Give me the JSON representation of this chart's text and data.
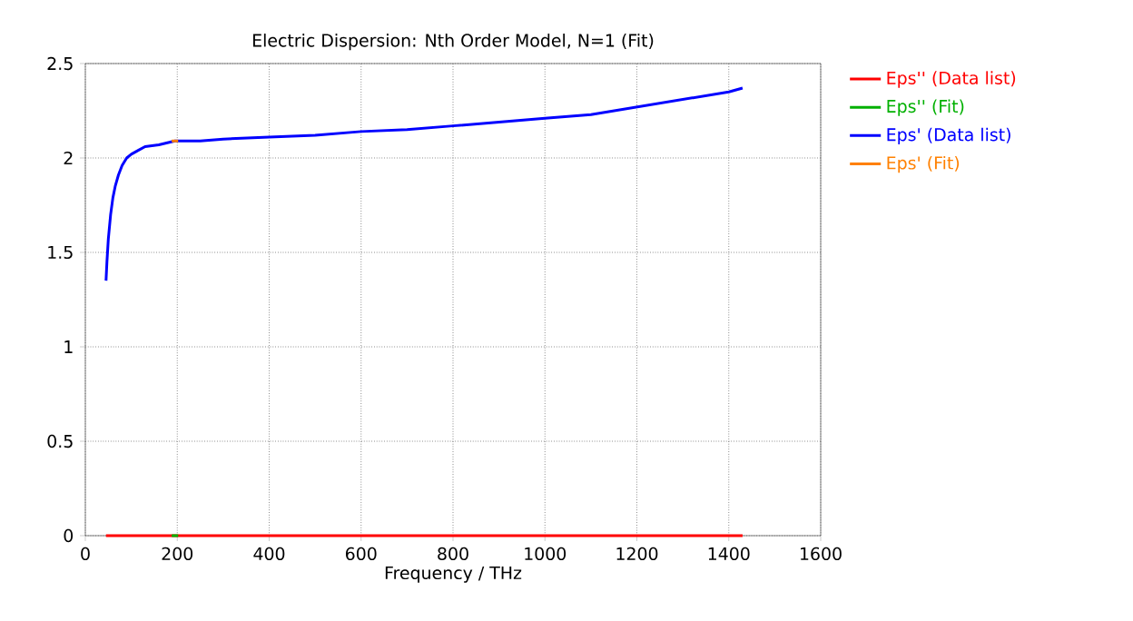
{
  "chart_data": {
    "type": "line",
    "title": "Electric Dispersion: Nth Order Model, N=1 (Fit)",
    "xlabel": "Frequency / THz",
    "series": [
      {
        "name": "Eps'' (Data list)",
        "color": "#ff0000",
        "x": [
          45,
          200,
          400,
          600,
          800,
          1000,
          1200,
          1430
        ],
        "values": [
          0,
          0,
          0,
          0,
          0,
          0,
          0,
          0
        ]
      },
      {
        "name": "Eps'' (Fit)",
        "color": "#00b000",
        "x": [
          188,
          202
        ],
        "values": [
          0,
          0
        ]
      },
      {
        "name": "Eps' (Data list)",
        "color": "#0000ff",
        "x": [
          45,
          47,
          50,
          55,
          60,
          65,
          72,
          80,
          90,
          100,
          115,
          130,
          160,
          195,
          250,
          300,
          400,
          500,
          600,
          700,
          800,
          900,
          1000,
          1100,
          1200,
          1300,
          1400,
          1430
        ],
        "values": [
          1.35,
          1.45,
          1.57,
          1.7,
          1.79,
          1.85,
          1.91,
          1.96,
          2.0,
          2.02,
          2.04,
          2.06,
          2.07,
          2.09,
          2.09,
          2.1,
          2.11,
          2.12,
          2.14,
          2.15,
          2.17,
          2.19,
          2.21,
          2.23,
          2.27,
          2.31,
          2.35,
          2.37
        ]
      },
      {
        "name": "Eps' (Fit)",
        "color": "#ff8000",
        "x": [
          188,
          202
        ],
        "values": [
          2.09,
          2.09
        ]
      }
    ],
    "xlim": [
      0,
      1600
    ],
    "xticks": [
      0,
      200,
      400,
      600,
      800,
      1000,
      1200,
      1400,
      1600
    ],
    "ylim": [
      0,
      2.5
    ],
    "yticks": [
      0,
      0.5,
      1,
      1.5,
      2,
      2.5
    ],
    "grid": true,
    "legend": "top right",
    "line_style": "solid",
    "marker": "none"
  }
}
